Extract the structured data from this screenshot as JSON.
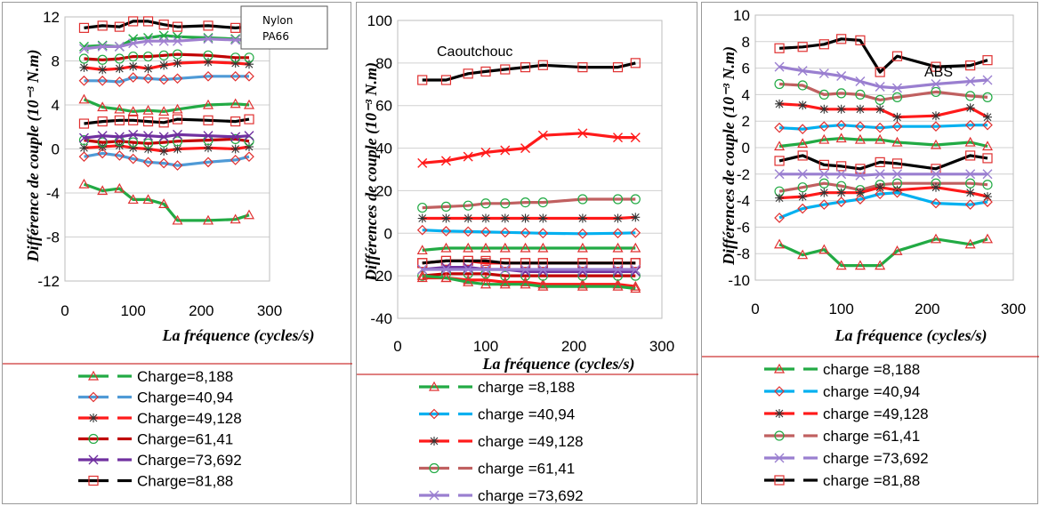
{
  "chart_data": [
    {
      "type": "line",
      "panel": "nylon",
      "label_lines": [
        "Nylon",
        "PA66"
      ],
      "xlabel": "La fréquence (cycles/s)",
      "ylabel": "Différence de couple (10⁻³ N.m)",
      "xlim": [
        0,
        300
      ],
      "ylim": [
        -12,
        12
      ],
      "x_ticks": [
        "0",
        "100",
        "200",
        "300"
      ],
      "y_ticks": [
        "-12",
        "-8",
        "-4",
        "0",
        "4",
        "8",
        "12"
      ],
      "grid": true,
      "legend_position": "bottom",
      "x": [
        28,
        55,
        80,
        100,
        122,
        145,
        165,
        210,
        250,
        270
      ],
      "series": [
        {
          "name": "Charge=8,188",
          "color": "#22aa44",
          "marker": "triangle",
          "values": [
            -3.2,
            -3.8,
            -3.6,
            -4.6,
            -4.6,
            -5.0,
            -6.5,
            -6.5,
            -6.4,
            -6.0
          ]
        },
        {
          "name": "Charge=40,94",
          "color": "#4f9ad6",
          "marker": "diamond",
          "values": [
            -0.7,
            -0.4,
            -0.6,
            -0.9,
            -1.2,
            -1.3,
            -1.5,
            -1.2,
            -1.0,
            -0.7
          ]
        },
        {
          "name": "Charge=49,128",
          "color": "#ff1a1a",
          "marker": "asterisk",
          "values": [
            0.1,
            0.2,
            0.3,
            0.1,
            0.0,
            -0.2,
            0.0,
            0.1,
            0.0,
            0.2
          ]
        },
        {
          "name": "Charge=61,41",
          "color": "#c00000",
          "marker": "circle",
          "values": [
            0.8,
            0.6,
            0.7,
            0.6,
            0.5,
            0.6,
            0.7,
            0.8,
            0.9,
            0.7
          ]
        },
        {
          "name": "Charge=73,692",
          "color": "#7030a0",
          "marker": "x",
          "values": [
            1.0,
            1.2,
            1.1,
            1.3,
            1.2,
            1.1,
            1.3,
            1.2,
            1.1,
            1.2
          ]
        },
        {
          "name": "Charge=81,88",
          "color": "#000000",
          "marker": "square",
          "values": [
            2.3,
            2.5,
            2.6,
            2.6,
            2.5,
            2.4,
            2.7,
            2.6,
            2.5,
            2.7
          ]
        }
      ],
      "extra_lines": [
        {
          "color": "#22aa44",
          "marker": "triangle",
          "values": [
            4.5,
            3.8,
            3.6,
            3.4,
            3.5,
            3.4,
            3.6,
            4.0,
            4.1,
            4.0
          ]
        },
        {
          "color": "#4f9ad6",
          "marker": "diamond",
          "values": [
            6.2,
            6.2,
            6.1,
            6.5,
            6.4,
            6.3,
            6.4,
            6.6,
            6.6,
            6.6
          ]
        },
        {
          "color": "#ff1a1a",
          "marker": "asterisk",
          "values": [
            7.4,
            7.2,
            7.3,
            7.5,
            7.3,
            7.6,
            7.8,
            7.9,
            7.8,
            7.7
          ]
        },
        {
          "color": "#c00000",
          "marker": "circle",
          "values": [
            8.2,
            8.1,
            8.2,
            8.4,
            8.4,
            8.5,
            8.6,
            8.5,
            8.3,
            8.3
          ]
        },
        {
          "color": "#22aa44",
          "marker": "x",
          "values": [
            9.3,
            9.4,
            9.3,
            10.0,
            10.1,
            10.3,
            10.2,
            10.1,
            10.0,
            9.8
          ]
        },
        {
          "color": "#a080d0",
          "marker": "x",
          "values": [
            9.1,
            9.3,
            9.3,
            9.6,
            9.8,
            9.8,
            9.8,
            10.0,
            9.9,
            9.9
          ]
        },
        {
          "color": "#000000",
          "marker": "square",
          "values": [
            11.0,
            11.2,
            11.1,
            11.6,
            11.6,
            11.3,
            11.1,
            11.2,
            11.0,
            11.1
          ]
        }
      ]
    },
    {
      "type": "line",
      "panel": "caoutchouc",
      "label": "Caoutchouc",
      "xlabel": "La fréquence (cycles/s)",
      "ylabel": "Différences de couple (10⁻³ N.m)",
      "xlim": [
        0,
        300
      ],
      "ylim": [
        -40,
        100
      ],
      "x_ticks": [
        "0",
        "100",
        "200",
        "300"
      ],
      "y_ticks": [
        "-40",
        "-20",
        "0",
        "20",
        "40",
        "60",
        "80",
        "100"
      ],
      "grid": true,
      "legend_position": "bottom",
      "x": [
        28,
        55,
        80,
        100,
        122,
        145,
        165,
        210,
        250,
        270
      ],
      "series": [
        {
          "name": "charge =8,188",
          "color": "#22aa44",
          "marker": "triangle",
          "values": [
            -20,
            -21,
            -23,
            -24,
            -24,
            -24,
            -25,
            -25,
            -25,
            -26
          ]
        },
        {
          "name": "charge =40,94",
          "color": "#00b0f0",
          "marker": "diamond",
          "values": [
            1.5,
            1.0,
            0.8,
            0.6,
            0.4,
            0.2,
            0.0,
            -0.2,
            0.0,
            0.2
          ]
        },
        {
          "name": "charge =49,128",
          "color": "#ff1a1a",
          "marker": "asterisk",
          "values": [
            7,
            7,
            7,
            7,
            7,
            7,
            7,
            7,
            7,
            7.5
          ]
        },
        {
          "name": "charge =61,41",
          "color": "#c06060",
          "marker": "circle",
          "values": [
            12,
            12.5,
            13,
            14,
            14,
            14.5,
            14.5,
            16,
            16,
            16
          ]
        },
        {
          "name": "charge =73,692",
          "color": "#9a7fd0",
          "marker": "x",
          "values": [
            -17,
            -17,
            -17,
            -17,
            -17,
            -17,
            -17,
            -17,
            -17,
            -17
          ]
        }
      ],
      "extra_lines": [
        {
          "color": "#000000",
          "marker": "square",
          "values": [
            72,
            72,
            75,
            76,
            77,
            78,
            79,
            78,
            78,
            80
          ]
        },
        {
          "color": "#ff1a1a",
          "marker": "x",
          "values": [
            33,
            34,
            36,
            38,
            39,
            40,
            46,
            47,
            45,
            45
          ]
        },
        {
          "color": "#22aa44",
          "marker": "triangle",
          "values": [
            -8,
            -7,
            -7,
            -7,
            -7,
            -7,
            -7,
            -7,
            -7,
            -7
          ]
        },
        {
          "color": "#ff1a1a",
          "marker": "triangle",
          "values": [
            -21,
            -21,
            -22,
            -22,
            -23,
            -23,
            -24,
            -24,
            -24,
            -25
          ]
        },
        {
          "color": "#c00000",
          "marker": "circle",
          "values": [
            -20,
            -19,
            -19,
            -19,
            -20,
            -20,
            -20,
            -20,
            -20,
            -20
          ]
        },
        {
          "color": "#ff1a1a",
          "marker": "square",
          "values": [
            -14,
            -13,
            -13,
            -14,
            -14,
            -14,
            -14,
            -14,
            -14,
            -14
          ]
        },
        {
          "color": "#000000",
          "marker": "square",
          "values": [
            -14,
            -13,
            -13,
            -13,
            -14,
            -14,
            -14,
            -14,
            -14,
            -14
          ]
        },
        {
          "color": "#7030a0",
          "marker": "x",
          "values": [
            -17,
            -16,
            -16,
            -17,
            -17,
            -18,
            -18,
            -18,
            -18,
            -18
          ]
        }
      ]
    },
    {
      "type": "line",
      "panel": "abs",
      "label": "ABS",
      "xlabel": "La fréquence (cycles/s)",
      "ylabel": "Différences de couple (10⁻³ N.m)",
      "xlim": [
        0,
        300
      ],
      "ylim": [
        -10,
        10
      ],
      "x_ticks": [
        "0",
        "100",
        "200",
        "300"
      ],
      "y_ticks": [
        "-10",
        "-8",
        "-6",
        "-4",
        "-2",
        "0",
        "2",
        "4",
        "6",
        "8",
        "10"
      ],
      "grid": true,
      "legend_position": "bottom",
      "x": [
        28,
        55,
        80,
        100,
        122,
        145,
        165,
        210,
        250,
        270
      ],
      "series": [
        {
          "name": "charge =8,188",
          "color": "#22aa44",
          "marker": "triangle",
          "values": [
            -7.3,
            -8.1,
            -7.7,
            -8.9,
            -8.9,
            -8.9,
            -7.8,
            -6.9,
            -7.3,
            -6.9
          ]
        },
        {
          "name": "charge =40,94",
          "color": "#00b0f0",
          "marker": "diamond",
          "values": [
            1.5,
            1.4,
            1.6,
            1.7,
            1.6,
            1.5,
            1.6,
            1.6,
            1.7,
            1.7
          ]
        },
        {
          "name": "charge =49,128",
          "color": "#ff1a1a",
          "marker": "asterisk",
          "values": [
            3.3,
            3.2,
            2.9,
            2.9,
            2.9,
            2.9,
            2.3,
            2.4,
            3.0,
            2.3
          ]
        },
        {
          "name": "charge =61,41",
          "color": "#c06060",
          "marker": "circle",
          "values": [
            4.8,
            4.7,
            4.0,
            4.1,
            4.0,
            3.6,
            3.8,
            4.2,
            3.9,
            3.8
          ]
        },
        {
          "name": "charge =73,692",
          "color": "#9a7fd0",
          "marker": "x",
          "values": [
            6.1,
            5.8,
            5.6,
            5.4,
            5.0,
            4.6,
            4.5,
            4.8,
            5.0,
            5.1
          ]
        },
        {
          "name": "charge =81,88",
          "color": "#000000",
          "marker": "square",
          "values": [
            7.5,
            7.6,
            7.8,
            8.2,
            8.1,
            5.7,
            6.9,
            6.1,
            6.2,
            6.6
          ]
        }
      ],
      "extra_lines": [
        {
          "color": "#22aa44",
          "marker": "triangle",
          "values": [
            0.1,
            0.3,
            0.6,
            0.7,
            0.6,
            0.6,
            0.4,
            0.2,
            0.4,
            0.1
          ]
        },
        {
          "color": "#000000",
          "marker": "square",
          "values": [
            -1.0,
            -0.6,
            -1.3,
            -1.4,
            -1.6,
            -1.1,
            -1.2,
            -1.6,
            -0.6,
            -0.8
          ]
        },
        {
          "color": "#9a7fd0",
          "marker": "x",
          "values": [
            -2.0,
            -2.0,
            -2.0,
            -2.0,
            -2.1,
            -2.0,
            -2.0,
            -2.0,
            -2.0,
            -2.0
          ]
        },
        {
          "color": "#c06060",
          "marker": "circle",
          "values": [
            -3.3,
            -3.0,
            -2.7,
            -2.9,
            -3.2,
            -2.8,
            -2.7,
            -2.7,
            -2.7,
            -2.8
          ]
        },
        {
          "color": "#ff1a1a",
          "marker": "asterisk",
          "values": [
            -3.8,
            -3.7,
            -3.4,
            -3.4,
            -3.4,
            -3.0,
            -3.2,
            -3.0,
            -3.4,
            -3.7
          ]
        },
        {
          "color": "#00b0f0",
          "marker": "diamond",
          "values": [
            -5.3,
            -4.6,
            -4.3,
            -4.1,
            -3.9,
            -3.5,
            -3.4,
            -4.2,
            -4.3,
            -4.1
          ]
        }
      ]
    }
  ]
}
